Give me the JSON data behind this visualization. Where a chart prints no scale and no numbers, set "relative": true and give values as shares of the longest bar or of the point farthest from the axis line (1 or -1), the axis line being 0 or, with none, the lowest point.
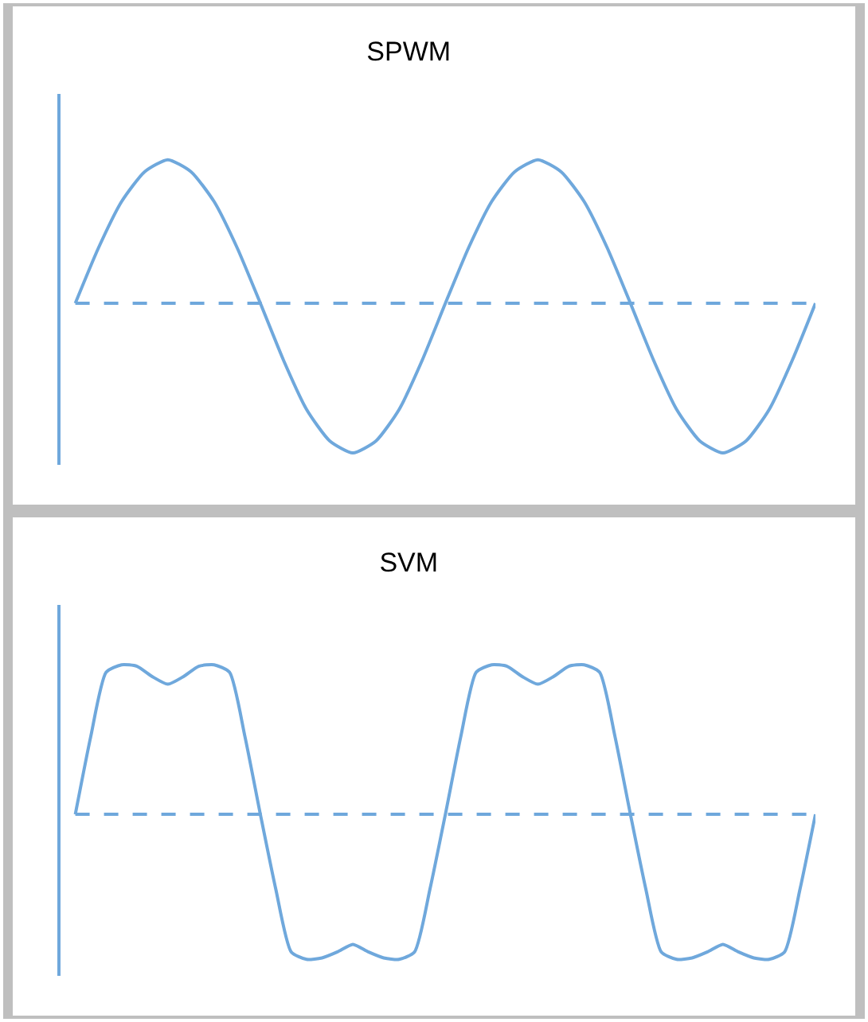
{
  "chart_data": [
    {
      "type": "line",
      "title": "SPWM",
      "relative": true,
      "legend": false,
      "line_style": "solid",
      "categories": [
        null,
        null,
        null,
        null,
        null,
        null,
        null,
        null,
        null,
        null,
        null,
        null,
        null,
        null,
        null,
        null,
        null,
        null,
        null,
        null,
        null,
        null,
        null,
        null,
        null,
        null,
        null,
        null,
        null,
        null,
        null,
        null,
        null
      ],
      "series": [
        {
          "color": "#6fa8dc",
          "values": [
            0,
            0.37,
            0.68,
            0.88,
            0.96,
            0.88,
            0.68,
            0.37,
            0,
            -0.38,
            -0.71,
            -0.92,
            -1,
            -0.92,
            -0.71,
            -0.38,
            0,
            0.37,
            0.68,
            0.88,
            0.96,
            0.88,
            0.68,
            0.37,
            0,
            -0.38,
            -0.71,
            -0.92,
            -1,
            -0.92,
            -0.71,
            -0.38,
            0
          ]
        }
      ],
      "ref_lines": [
        {
          "axis": "y",
          "value": 0,
          "color": "#6fa8dc",
          "line_style": "dashed"
        }
      ]
    },
    {
      "type": "line",
      "title": "SVM",
      "relative": true,
      "legend": false,
      "line_style": "solid",
      "categories": [
        null,
        null,
        null,
        null,
        null,
        null,
        null,
        null,
        null,
        null,
        null,
        null,
        null,
        null,
        null,
        null,
        null,
        null,
        null,
        null,
        null,
        null,
        null,
        null,
        null,
        null,
        null,
        null,
        null,
        null,
        null,
        null,
        null,
        null,
        null,
        null,
        null,
        null,
        null,
        null,
        null,
        null,
        null,
        null,
        null,
        null,
        null,
        null,
        null
      ],
      "series": [
        {
          "color": "#6fa8dc",
          "values": [
            0,
            0.52,
            0.95,
            1,
            0.99,
            0.92,
            0.87,
            0.92,
            0.99,
            1,
            0.95,
            0.52,
            0,
            -0.5,
            -0.92,
            -0.97,
            -0.96,
            -0.92,
            -0.87,
            -0.92,
            -0.96,
            -0.97,
            -0.92,
            -0.5,
            0,
            0.52,
            0.95,
            1,
            0.99,
            0.92,
            0.87,
            0.92,
            0.99,
            1,
            0.95,
            0.52,
            0,
            -0.5,
            -0.92,
            -0.97,
            -0.96,
            -0.92,
            -0.87,
            -0.92,
            -0.96,
            -0.97,
            -0.92,
            -0.5,
            0
          ]
        }
      ],
      "ref_lines": [
        {
          "axis": "y",
          "value": 0,
          "color": "#6fa8dc",
          "line_style": "dashed"
        }
      ]
    }
  ]
}
